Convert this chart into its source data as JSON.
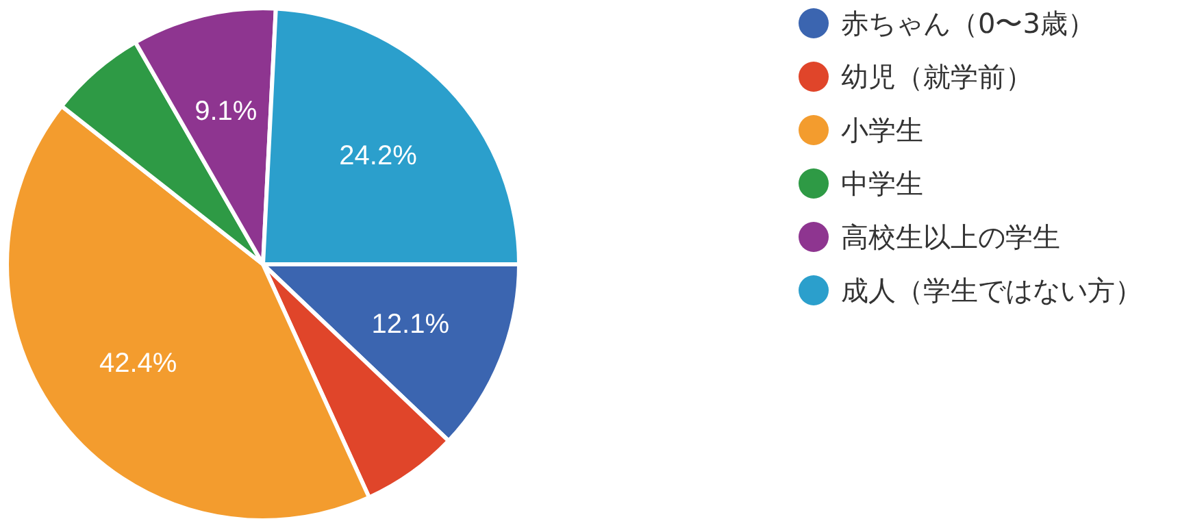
{
  "chart_data": {
    "type": "pie",
    "categories": [
      "赤ちゃん（0〜3歳）",
      "幼児（就学前）",
      "小学生",
      "中学生",
      "高校生以上の学生",
      "成人（学生ではない方）"
    ],
    "values": [
      12.1,
      6.1,
      42.4,
      6.1,
      9.1,
      24.2
    ],
    "colors": [
      "#3b65b0",
      "#e0452a",
      "#f39c2e",
      "#2e9a45",
      "#8e3590",
      "#2b9fcc"
    ],
    "value_labels": [
      "12.1%",
      null,
      "42.4%",
      null,
      "9.1%",
      "24.2%"
    ],
    "legend": "right"
  }
}
